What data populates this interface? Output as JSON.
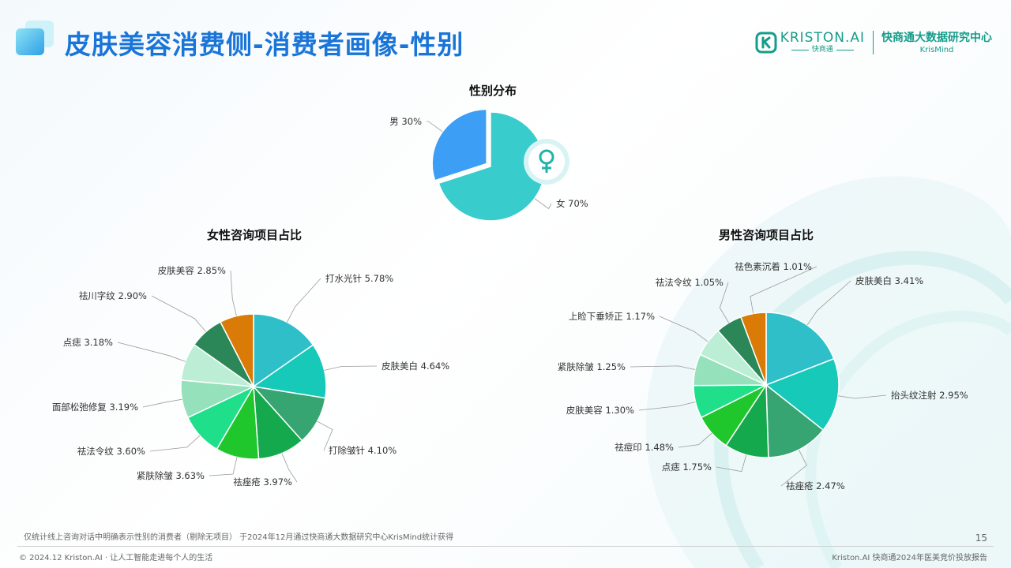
{
  "header": {
    "title": "皮肤美容消费侧-消费者画像-性别",
    "brand_name": "KRISTON.AI",
    "brand_sub": "快商通",
    "brand_center": "快商通大数据研究中心",
    "brand_en": "KrisMind"
  },
  "colors": {
    "accent": "#1a75d8",
    "brand": "#169c8a"
  },
  "icons": {
    "female": "female-symbol-icon"
  },
  "chart_data": [
    {
      "type": "pie",
      "title": "性别分布",
      "slices": [
        {
          "label": "男 30%",
          "value": 30,
          "color": "#3d9ef5"
        },
        {
          "label": "女 70%",
          "value": 70,
          "color": "#38cccc"
        }
      ]
    },
    {
      "type": "pie",
      "title": "女性咨询项目占比",
      "slices": [
        {
          "label": "打水光针 5.78%",
          "value": 5.78,
          "color": "#2fbfc9"
        },
        {
          "label": "皮肤美白 4.64%",
          "value": 4.64,
          "color": "#16c9b8"
        },
        {
          "label": "打除皱针 4.10%",
          "value": 4.1,
          "color": "#36a572"
        },
        {
          "label": "祛痤疮 3.97%",
          "value": 3.97,
          "color": "#15a94e"
        },
        {
          "label": "紧肤除皱 3.63%",
          "value": 3.63,
          "color": "#1fc62c"
        },
        {
          "label": "祛法令纹 3.60%",
          "value": 3.6,
          "color": "#1fdf8b"
        },
        {
          "label": "面部松弛修复 3.19%",
          "value": 3.19,
          "color": "#95e1bc"
        },
        {
          "label": "点痣 3.18%",
          "value": 3.18,
          "color": "#bceed6"
        },
        {
          "label": "祛川字纹 2.90%",
          "value": 2.9,
          "color": "#2b8758"
        },
        {
          "label": "皮肤美容 2.85%",
          "value": 2.85,
          "color": "#d97b06"
        }
      ]
    },
    {
      "type": "pie",
      "title": "男性咨询项目占比",
      "slices": [
        {
          "label": "皮肤美白 3.41%",
          "value": 3.41,
          "color": "#2fbfc9"
        },
        {
          "label": "抬头纹注射 2.95%",
          "value": 2.95,
          "color": "#16c9b8"
        },
        {
          "label": "祛痤疮 2.47%",
          "value": 2.47,
          "color": "#36a572"
        },
        {
          "label": "点痣 1.75%",
          "value": 1.75,
          "color": "#15a94e"
        },
        {
          "label": "祛痘印 1.48%",
          "value": 1.48,
          "color": "#1fc62c"
        },
        {
          "label": "皮肤美容 1.30%",
          "value": 1.3,
          "color": "#1fdf8b"
        },
        {
          "label": "紧肤除皱 1.25%",
          "value": 1.25,
          "color": "#95e1bc"
        },
        {
          "label": "上睑下垂矫正 1.17%",
          "value": 1.17,
          "color": "#bceed6"
        },
        {
          "label": "祛法令纹 1.05%",
          "value": 1.05,
          "color": "#2b8758"
        },
        {
          "label": "祛色素沉着 1.01%",
          "value": 1.01,
          "color": "#d97b06"
        }
      ]
    }
  ],
  "footer": {
    "note": "仅统计线上咨询对话中明确表示性别的消费者（剔除无项目） 于2024年12月通过快商通大数据研究中心KrisMind统计获得",
    "page": "15",
    "left": "© 2024.12 Kriston.AI · 让人工智能走进每个人的生活",
    "right": "Kriston.AI 快商通2024年医美竞价投放报告"
  }
}
